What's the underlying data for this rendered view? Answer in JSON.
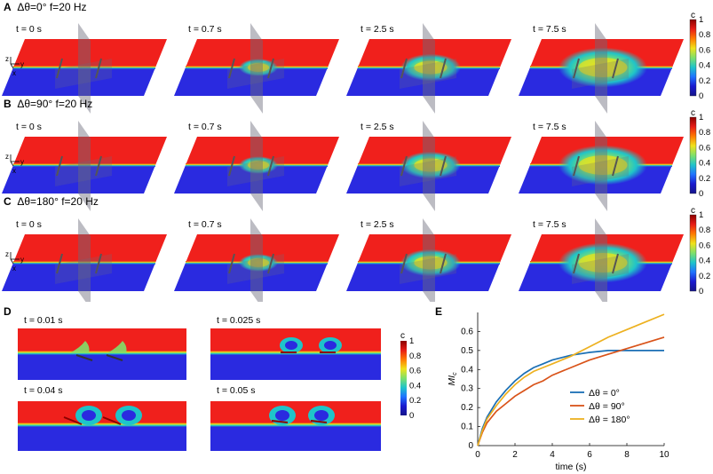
{
  "panels": [
    {
      "letter": "A",
      "condition": "Δθ=0°  f=20 Hz"
    },
    {
      "letter": "B",
      "condition": "Δθ=90°  f=20 Hz"
    },
    {
      "letter": "C",
      "condition": "Δθ=180°  f=20 Hz"
    }
  ],
  "row_times": [
    "t = 0 s",
    "t = 0.7 s",
    "t = 2.5 s",
    "t = 7.5 s"
  ],
  "axis_triad": {
    "z": "z",
    "y": "y",
    "x": "x"
  },
  "colorbar": {
    "title": "c",
    "ticks": [
      "1",
      "0.8",
      "0.6",
      "0.4",
      "0.2",
      "0"
    ],
    "colors": [
      "#8b0000",
      "#e81c16",
      "#ff7a00",
      "#f0e21a",
      "#7fe06a",
      "#1fc4c9",
      "#1f73ff",
      "#1a1acf",
      "#14148a"
    ]
  },
  "panel_D": {
    "letter": "D",
    "times": [
      "t = 0.01 s",
      "t = 0.025 s",
      "t = 0.04 s",
      "t = 0.05 s"
    ],
    "colorbar_title": "c",
    "ticks": [
      "1",
      "0.8",
      "0.6",
      "0.4",
      "0.2",
      "0"
    ]
  },
  "panel_E": {
    "letter": "E",
    "ylabel": "MI_c",
    "xlabel": "time (s)"
  },
  "chart_data": {
    "type": "line",
    "xlabel": "time (s)",
    "ylabel": "MI",
    "xlim": [
      0,
      10
    ],
    "ylim": [
      0,
      0.7
    ],
    "xticks": [
      0,
      2,
      4,
      6,
      8,
      10
    ],
    "yticks": [
      0,
      0.1,
      0.2,
      0.3,
      0.4,
      0.5,
      0.6
    ],
    "legend_position": "center-right",
    "series": [
      {
        "name": "Δθ = 0°",
        "color": "#1a6fb5",
        "x": [
          0,
          0.25,
          0.5,
          1,
          1.5,
          2,
          2.5,
          3,
          3.5,
          4,
          5,
          6,
          7,
          8,
          9,
          10
        ],
        "y": [
          0,
          0.09,
          0.15,
          0.23,
          0.29,
          0.34,
          0.38,
          0.41,
          0.43,
          0.45,
          0.475,
          0.49,
          0.5,
          0.5,
          0.5,
          0.5
        ]
      },
      {
        "name": "Δθ = 90°",
        "color": "#d95319",
        "x": [
          0,
          0.25,
          0.5,
          1,
          1.5,
          2,
          2.5,
          3,
          3.5,
          4,
          5,
          6,
          7,
          8,
          9,
          10
        ],
        "y": [
          0,
          0.07,
          0.12,
          0.18,
          0.22,
          0.26,
          0.29,
          0.32,
          0.34,
          0.37,
          0.41,
          0.45,
          0.48,
          0.51,
          0.54,
          0.57
        ]
      },
      {
        "name": "Δθ = 180°",
        "color": "#edb120",
        "x": [
          0,
          0.25,
          0.5,
          1,
          1.5,
          2,
          2.5,
          3,
          3.5,
          4,
          5,
          6,
          7,
          8,
          9,
          10
        ],
        "y": [
          0,
          0.08,
          0.14,
          0.21,
          0.27,
          0.32,
          0.36,
          0.39,
          0.41,
          0.43,
          0.47,
          0.52,
          0.57,
          0.61,
          0.65,
          0.69
        ]
      }
    ]
  }
}
